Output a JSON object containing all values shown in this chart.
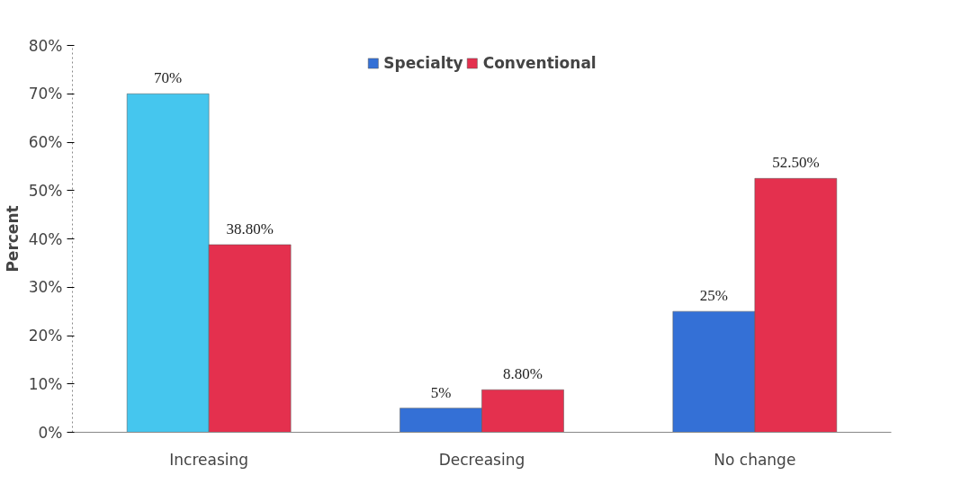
{
  "chart_data": {
    "type": "bar",
    "categories": [
      "Increasing",
      "Decreasing",
      "No change"
    ],
    "ylabel": "Percent",
    "ylim": [
      0,
      80
    ],
    "yticks": [
      {
        "value": 0,
        "label": "0%"
      },
      {
        "value": 10,
        "label": "10%"
      },
      {
        "value": 20,
        "label": "20%"
      },
      {
        "value": 30,
        "label": "30%"
      },
      {
        "value": 40,
        "label": "40%"
      },
      {
        "value": 50,
        "label": "50%"
      },
      {
        "value": 60,
        "label": "60%"
      },
      {
        "value": 70,
        "label": "70%"
      },
      {
        "value": 80,
        "label": "80%"
      }
    ],
    "series": [
      {
        "name": "Specialty",
        "color": "#3470d6",
        "colors": [
          "#45c6ee",
          "#3470d6",
          "#3470d6"
        ],
        "values": [
          70,
          5,
          25
        ],
        "value_labels": [
          "70%",
          "5%",
          "25%"
        ]
      },
      {
        "name": "Conventional",
        "color": "#e4304e",
        "colors": [
          "#e4304e",
          "#e4304e",
          "#e4304e"
        ],
        "values": [
          38.8,
          8.8,
          52.5
        ],
        "value_labels": [
          "38.80%",
          "8.80%",
          "52.50%"
        ]
      }
    ],
    "legend": "top",
    "grid": false
  }
}
